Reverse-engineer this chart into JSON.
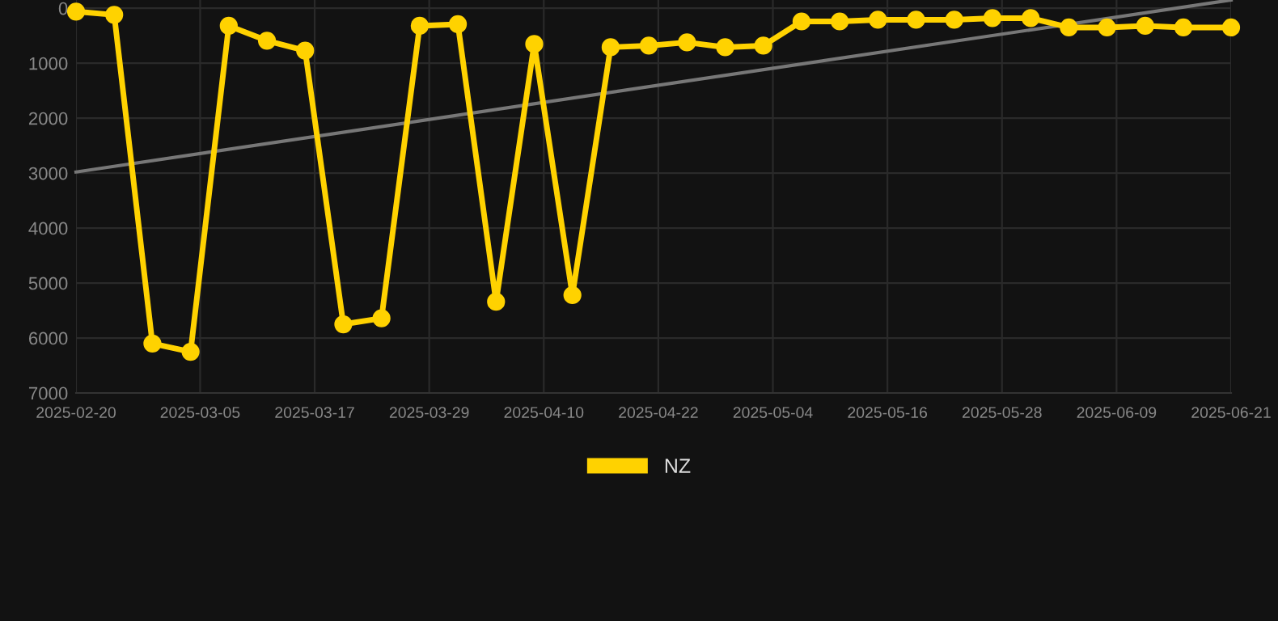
{
  "chart_data": {
    "type": "line",
    "x": [
      "2025-02-20",
      "2025-02-24",
      "2025-02-28",
      "2025-03-04",
      "2025-03-08",
      "2025-03-12",
      "2025-03-16",
      "2025-03-20",
      "2025-03-24",
      "2025-03-28",
      "2025-04-01",
      "2025-04-05",
      "2025-04-09",
      "2025-04-13",
      "2025-04-17",
      "2025-04-21",
      "2025-04-25",
      "2025-04-29",
      "2025-05-03",
      "2025-05-07",
      "2025-05-11",
      "2025-05-15",
      "2025-05-19",
      "2025-05-23",
      "2025-05-27",
      "2025-05-31",
      "2025-06-04",
      "2025-06-08",
      "2025-06-12",
      "2025-06-16",
      "2025-06-21"
    ],
    "series": [
      {
        "name": "NZ",
        "color": "#ffd200",
        "marker": "circle",
        "values": [
          60,
          120,
          6100,
          6250,
          320,
          590,
          770,
          5750,
          5640,
          320,
          290,
          5340,
          650,
          5220,
          710,
          680,
          620,
          710,
          680,
          240,
          240,
          210,
          210,
          210,
          180,
          180,
          350,
          350,
          320,
          350,
          350
        ]
      },
      {
        "type": "line",
        "color": "#777777",
        "marker": "none",
        "x": [
          "2025-02-20",
          "2025-06-21"
        ],
        "values": [
          2980,
          -150
        ]
      }
    ],
    "ylim": [
      7000,
      -150
    ],
    "yticks": [
      0,
      1000,
      2000,
      3000,
      4000,
      5000,
      6000,
      7000
    ],
    "xlim": [
      "2025-02-20",
      "2025-06-21"
    ],
    "xticks": [
      "2025-02-20",
      "2025-03-05",
      "2025-03-17",
      "2025-03-29",
      "2025-04-10",
      "2025-04-22",
      "2025-05-04",
      "2025-05-16",
      "2025-05-28",
      "2025-06-09",
      "2025-06-21"
    ],
    "grid": true,
    "legend": "bottom"
  }
}
